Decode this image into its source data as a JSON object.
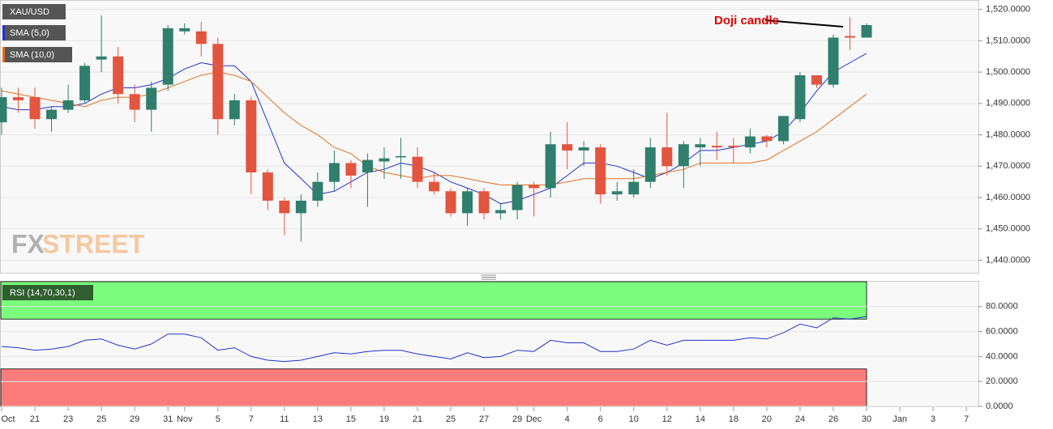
{
  "chart_data": [
    {
      "type": "candlestick",
      "name": "XAU/USD",
      "categories": [
        "Oct",
        null,
        "21",
        null,
        "23",
        null,
        "25",
        null,
        "29",
        null,
        "31",
        "Nov",
        null,
        "5",
        null,
        "7",
        null,
        "11",
        null,
        "13",
        null,
        "15",
        null,
        "19",
        null,
        "21",
        null,
        "25",
        null,
        "27",
        null,
        "29",
        "Dec",
        null,
        "4",
        null,
        "6",
        null,
        "10",
        null,
        "12",
        null,
        "14",
        null,
        "18",
        null,
        "20",
        null,
        "24",
        null,
        "26",
        null,
        "30",
        null,
        "Jan",
        null,
        "3",
        null,
        "7"
      ],
      "open": [
        1484,
        1492,
        1492,
        1485,
        1488,
        1491,
        1504,
        1505,
        1493,
        1488,
        1496,
        1513,
        1513,
        1509,
        1485,
        1491,
        1468,
        1459,
        1455,
        1459,
        1465,
        1471,
        1468,
        1471.5,
        1472.8,
        1473,
        1465,
        1462,
        1455,
        1462,
        1455,
        1456,
        1464,
        1463,
        1477,
        1475,
        1476,
        1461,
        1461,
        1465,
        1476,
        1470,
        1476,
        1476.5,
        1476.5,
        1476,
        1479.5,
        1478,
        1485,
        1499,
        1496,
        1511.5,
        1511,
        null,
        null,
        null,
        null,
        null,
        null
      ],
      "high": [
        1495,
        1495,
        1495,
        1489,
        1496,
        1503,
        1518,
        1508,
        1496,
        1497,
        1515,
        1515.5,
        1516,
        1511,
        1493,
        1492,
        1469,
        1460,
        1461,
        1468,
        1475,
        1472,
        1474,
        1476,
        1479,
        1476,
        1468,
        1463,
        1463,
        1463,
        1458,
        1465,
        1465,
        1481,
        1484,
        1478,
        1477,
        1465,
        1469,
        1479,
        1487,
        1478,
        1479,
        1481,
        1479,
        1482,
        1480,
        1486,
        1500,
        1499,
        1512,
        1517.5,
        1515.5,
        null,
        null,
        null,
        null,
        null,
        null
      ],
      "low": [
        1480,
        1487,
        1482,
        1481,
        1487,
        1490,
        1500,
        1490,
        1484,
        1481,
        1494,
        1512,
        1505,
        1480,
        1483,
        1461,
        1456,
        1448,
        1446,
        1457,
        1462,
        1463,
        1457,
        1466,
        1466,
        1463,
        1461,
        1454,
        1451,
        1453,
        1453,
        1453,
        1454,
        1460,
        1469,
        1470,
        1458,
        1459,
        1460,
        1463,
        1467,
        1463,
        1470,
        1472,
        1471,
        1474,
        1476,
        1477,
        1484,
        1495,
        1495,
        1507,
        1511,
        null,
        null,
        null,
        null,
        null,
        null
      ],
      "close": [
        1492,
        1491,
        1485,
        1488,
        1491,
        1502,
        1505,
        1493,
        1488,
        1495,
        1514,
        1514,
        1509,
        1485,
        1491,
        1468,
        1459,
        1455,
        1459,
        1465,
        1471,
        1467,
        1472,
        1472.5,
        1473.2,
        1465,
        1462,
        1455,
        1462,
        1455,
        1456,
        1464,
        1463,
        1477,
        1475,
        1476,
        1461,
        1462,
        1465,
        1476,
        1470,
        1477,
        1477,
        1476,
        1476,
        1479.5,
        1478,
        1486,
        1499,
        1496,
        1511,
        1511,
        1515,
        null,
        null,
        null,
        null,
        null,
        null
      ],
      "up_color": "#2f7f6c",
      "down_color": "#e2553f",
      "series": [
        {
          "name": "SMA (5,0)",
          "color": "#2233cc",
          "values": [
            1489,
            1488,
            1488,
            1489,
            1489,
            1490,
            1493,
            1495,
            1495,
            1496,
            1498,
            1501,
            1503,
            1502,
            1502,
            1497,
            1484,
            1471,
            1466,
            1461,
            1462,
            1465,
            1468,
            1469,
            1471,
            1470,
            1468,
            1465,
            1463,
            1461,
            1458,
            1459,
            1461,
            1463,
            1467,
            1471,
            1471,
            1470,
            1468,
            1466,
            1468,
            1471,
            1475,
            1475,
            1476,
            1477,
            1478,
            1481,
            1487,
            1494,
            1500,
            1503,
            1506,
            null,
            null,
            null,
            null,
            null,
            null
          ]
        },
        {
          "name": "SMA (10,0)",
          "color": "#e07020",
          "values": [
            1494,
            1493,
            1492,
            1491,
            1490,
            1489,
            1491,
            1492,
            1492,
            1493,
            1495,
            1497,
            1499,
            1500,
            1499,
            1497,
            1492,
            1487,
            1483,
            1480,
            1476,
            1474,
            1470,
            1468,
            1467,
            1466,
            1467,
            1467,
            1466,
            1465,
            1464,
            1464,
            1464,
            1464,
            1465,
            1466,
            1466,
            1466,
            1466,
            1467,
            1468,
            1469,
            1471,
            1471,
            1471,
            1471,
            1472,
            1475,
            1478,
            1481,
            1485,
            1489,
            1493,
            null,
            null,
            null,
            null,
            null,
            null
          ]
        }
      ],
      "ylim": [
        1436,
        1523
      ],
      "yticks": [
        {
          "value": 1440,
          "label": "1,440.0000"
        },
        {
          "value": 1450,
          "label": "1,450.0000"
        },
        {
          "value": 1460,
          "label": "1,460.0000"
        },
        {
          "value": 1470,
          "label": "1,470.0000"
        },
        {
          "value": 1480,
          "label": "1,480.0000"
        },
        {
          "value": 1490,
          "label": "1,490.0000"
        },
        {
          "value": 1500,
          "label": "1,500.0000"
        },
        {
          "value": 1510,
          "label": "1,510.0000"
        },
        {
          "value": 1520,
          "label": "1,520.0000"
        }
      ],
      "grid": true,
      "annotation": "Doji candle",
      "watermark": [
        "FX",
        "STREET"
      ]
    },
    {
      "type": "line",
      "series": [
        {
          "name": "RSI (14,70,30,1)",
          "color": "#2233cc",
          "values": [
            48,
            47,
            45,
            46,
            48,
            53,
            54,
            49,
            46,
            50,
            58,
            58,
            55,
            45,
            47,
            40,
            37,
            36,
            37,
            40,
            43,
            42,
            44,
            45,
            45,
            42,
            40,
            38,
            43,
            39,
            40,
            45,
            44,
            53,
            51,
            51,
            44,
            44,
            46,
            53,
            49,
            53,
            53,
            53,
            53,
            55,
            54,
            59,
            66,
            63,
            71,
            70,
            72,
            null,
            null,
            null,
            null,
            null,
            null
          ]
        }
      ],
      "overbought": 70,
      "oversold": 30,
      "overbought_color": "#7cfc7c",
      "oversold_color": "#fc7c7c",
      "ylim": [
        0,
        100
      ],
      "yticks": [
        {
          "value": 0,
          "label": "0.0000"
        },
        {
          "value": 20,
          "label": "20.0000"
        },
        {
          "value": 40,
          "label": "40.0000"
        },
        {
          "value": 60,
          "label": "60.0000"
        },
        {
          "value": 80,
          "label": "80.0000"
        }
      ],
      "grid": true
    }
  ]
}
